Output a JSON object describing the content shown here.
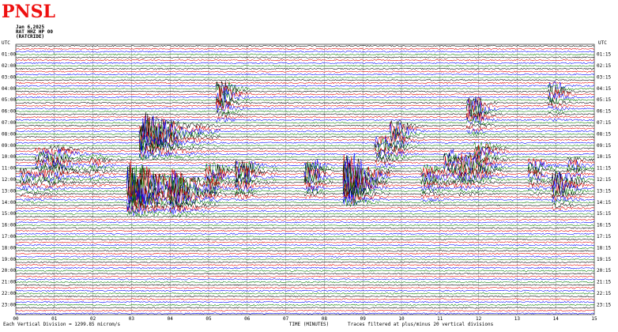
{
  "header": {
    "logo_text": "PNSL",
    "date": "Jan 6,2025",
    "station": "RAT HHZ HP 00",
    "subtitle": "(RATCRIDE)"
  },
  "chart_data": {
    "type": "line",
    "title": "",
    "xlabel": "TIME (MINUTES)",
    "x_note": "Traces filtered at plus/minus 20 vertical divisions",
    "scale_note": "Each Vertical Division = 1299.85 microm/s",
    "xlim": [
      0,
      15
    ],
    "x_ticks": [
      "00",
      "01",
      "02",
      "03",
      "04",
      "05",
      "06",
      "07",
      "08",
      "09",
      "10",
      "11",
      "12",
      "13",
      "14",
      "15"
    ],
    "left_axis_label": "UTC",
    "right_axis_label": "UTC",
    "left_hours": [
      "01:00",
      "02:00",
      "03:00",
      "04:00",
      "05:00",
      "06:00",
      "07:00",
      "08:00",
      "09:00",
      "10:00",
      "11:00",
      "12:00",
      "13:00",
      "14:00",
      "15:00",
      "16:00",
      "17:00",
      "18:00",
      "19:00",
      "20:00",
      "21:00",
      "22:00",
      "23:00"
    ],
    "right_hours": [
      "01:15",
      "02:15",
      "03:15",
      "04:15",
      "05:15",
      "06:15",
      "07:15",
      "08:15",
      "09:15",
      "10:15",
      "11:15",
      "12:15",
      "13:15",
      "14:15",
      "15:15",
      "16:15",
      "17:15",
      "18:15",
      "19:15",
      "20:15",
      "21:15",
      "22:15",
      "23:15"
    ],
    "traces_per_hour": 4,
    "trace_colors": [
      "#000000",
      "#e00000",
      "#0000ff",
      "#007a00"
    ],
    "grid": true,
    "events": [
      {
        "minute": 0.8,
        "hour": 9.8,
        "amp": 1.6,
        "dur": 1.2,
        "color": "#e00000"
      },
      {
        "minute": 1.0,
        "hour": 10.8,
        "amp": 1.4,
        "dur": 1.2,
        "color": "#0000ff"
      },
      {
        "minute": 0.4,
        "hour": 11.5,
        "amp": 1.5,
        "dur": 0.9,
        "color": "#0000ff"
      },
      {
        "minute": 1.2,
        "hour": 9.5,
        "amp": 1.2,
        "dur": 1.0,
        "color": "#000000"
      },
      {
        "minute": 2.2,
        "hour": 10.3,
        "amp": 1.1,
        "dur": 0.8,
        "color": "#0000ff"
      },
      {
        "minute": 3.2,
        "hour": 12.3,
        "amp": 9.0,
        "dur": 2.0,
        "color": "#0000ff"
      },
      {
        "minute": 3.5,
        "hour": 7.5,
        "amp": 7.5,
        "dur": 1.8,
        "color": "#007a00"
      },
      {
        "minute": 4.3,
        "hour": 12.5,
        "amp": 4.0,
        "dur": 1.0,
        "color": "#007a00"
      },
      {
        "minute": 5.5,
        "hour": 4.2,
        "amp": 4.0,
        "dur": 0.6,
        "color": "#007a00"
      },
      {
        "minute": 6.0,
        "hour": 11.0,
        "amp": 3.5,
        "dur": 0.8,
        "color": "#000000"
      },
      {
        "minute": 5.2,
        "hour": 11.2,
        "amp": 3.0,
        "dur": 0.9,
        "color": "#e00000"
      },
      {
        "minute": 7.8,
        "hour": 11.0,
        "amp": 3.5,
        "dur": 0.5,
        "color": "#007a00"
      },
      {
        "minute": 8.8,
        "hour": 11.5,
        "amp": 10.0,
        "dur": 0.9,
        "color": "#0000ff"
      },
      {
        "minute": 9.6,
        "hour": 8.8,
        "amp": 2.5,
        "dur": 0.6,
        "color": "#007a00"
      },
      {
        "minute": 10.0,
        "hour": 7.5,
        "amp": 3.0,
        "dur": 0.6,
        "color": "#e00000"
      },
      {
        "minute": 10.8,
        "hour": 11.3,
        "amp": 2.5,
        "dur": 0.8,
        "color": "#e00000"
      },
      {
        "minute": 11.4,
        "hour": 10.0,
        "amp": 2.5,
        "dur": 0.7,
        "color": "#0000ff"
      },
      {
        "minute": 12.0,
        "hour": 5.5,
        "amp": 3.5,
        "dur": 0.6,
        "color": "#0000ff"
      },
      {
        "minute": 12.2,
        "hour": 9.3,
        "amp": 2.5,
        "dur": 0.7,
        "color": "#000000"
      },
      {
        "minute": 11.8,
        "hour": 10.6,
        "amp": 3.0,
        "dur": 1.0,
        "color": "#e00000"
      },
      {
        "minute": 13.6,
        "hour": 10.8,
        "amp": 2.0,
        "dur": 0.7,
        "color": "#007a00"
      },
      {
        "minute": 14.1,
        "hour": 4.1,
        "amp": 2.0,
        "dur": 0.5,
        "color": "#0000ff"
      },
      {
        "minute": 14.2,
        "hour": 12.0,
        "amp": 3.5,
        "dur": 0.7,
        "color": "#e00000"
      },
      {
        "minute": 14.6,
        "hour": 10.5,
        "amp": 1.5,
        "dur": 0.5,
        "color": "#0000ff"
      }
    ]
  }
}
